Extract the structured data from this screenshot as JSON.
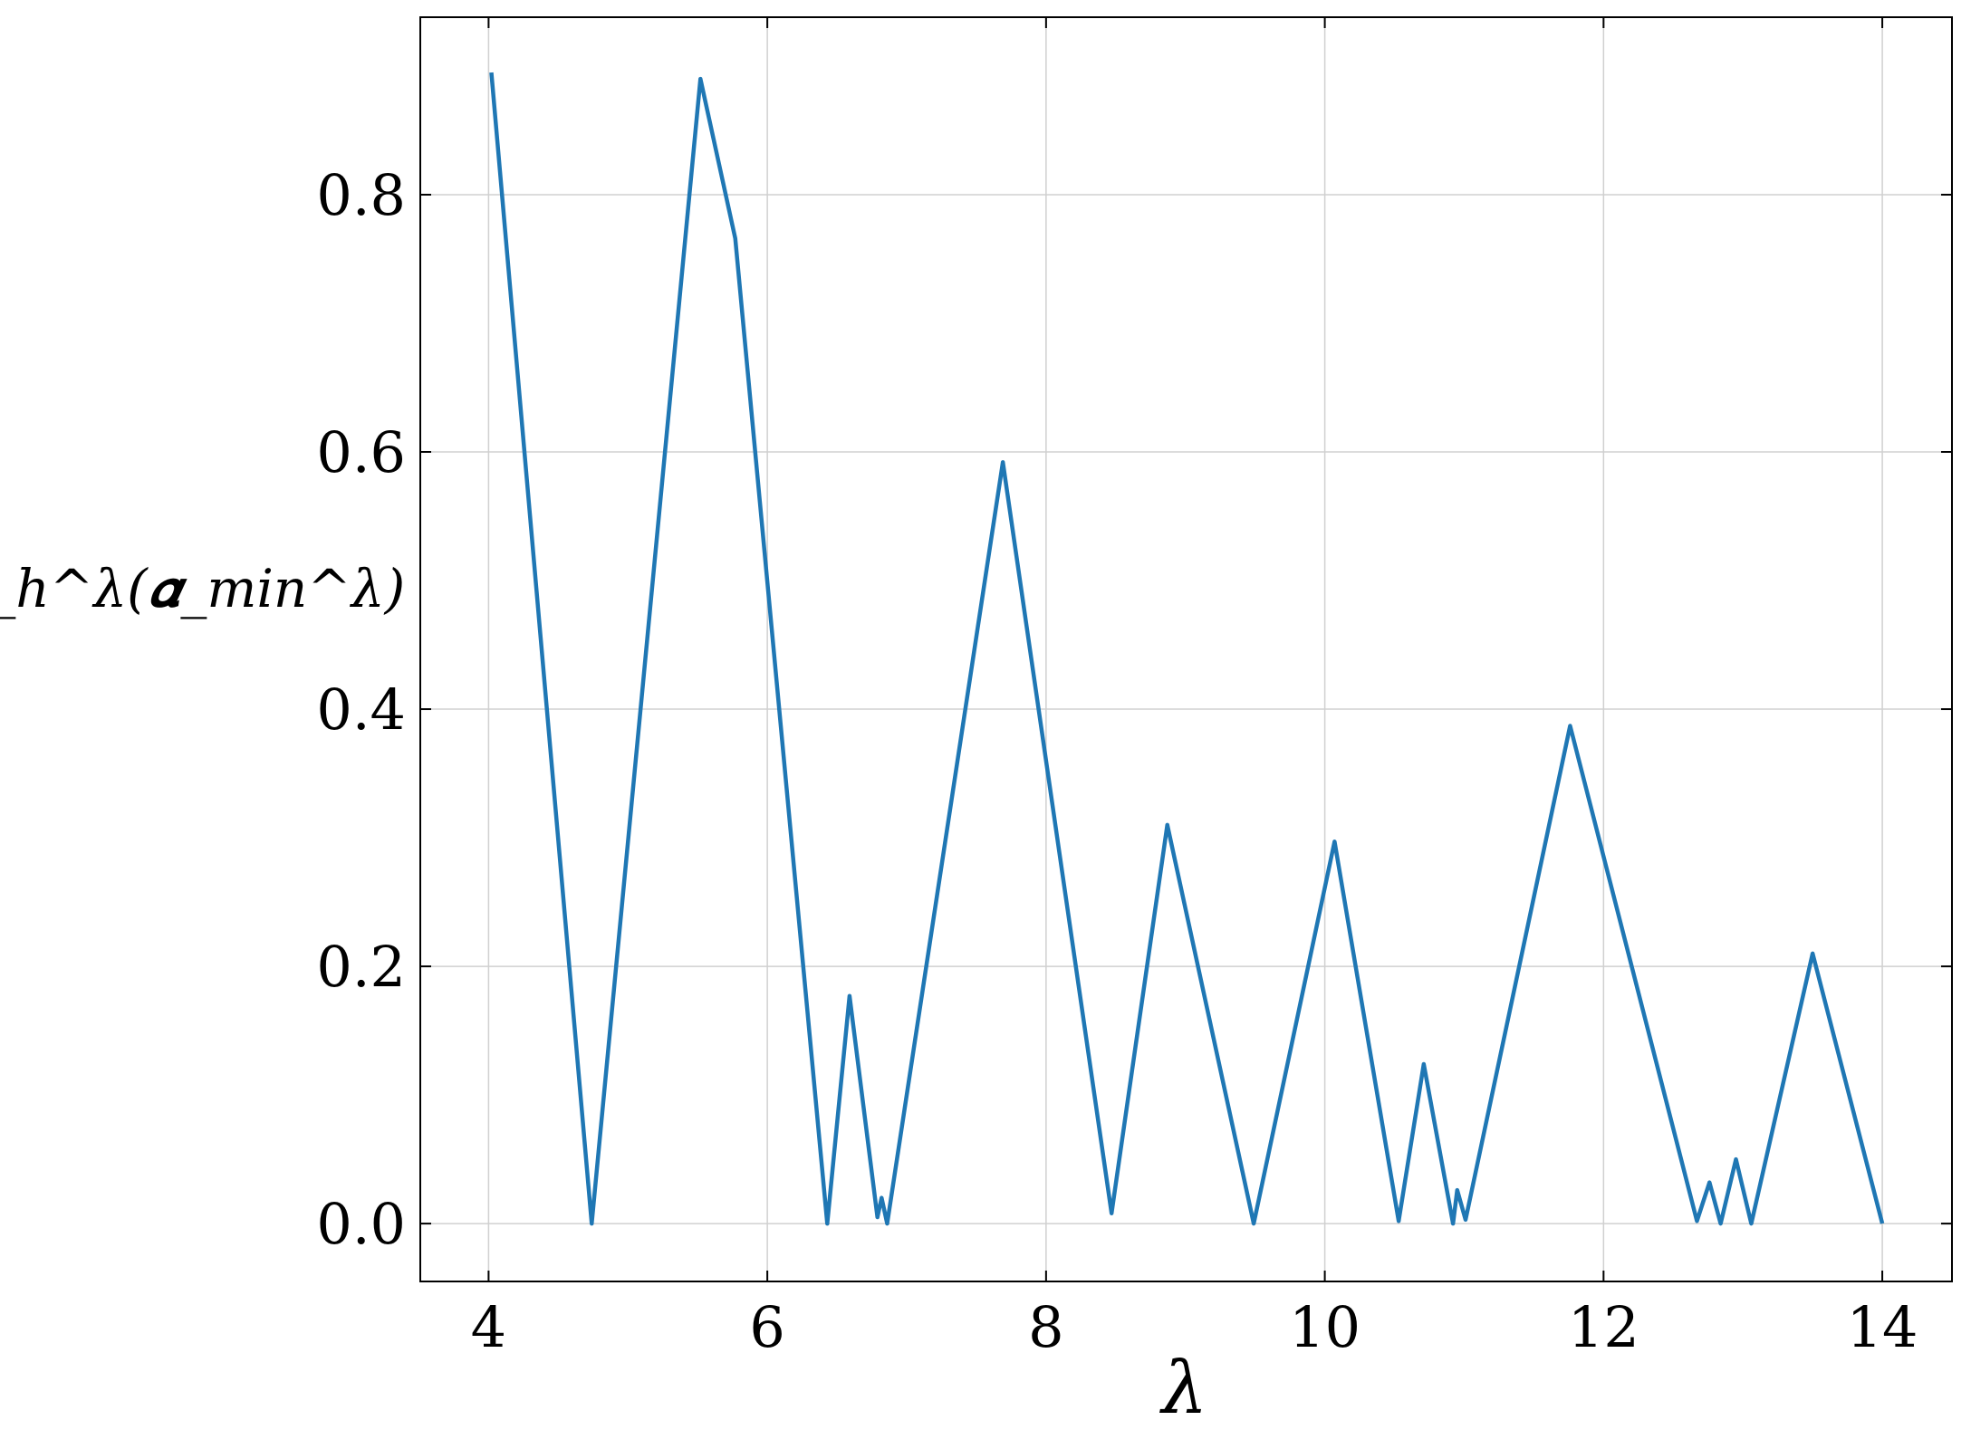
{
  "chart_data": {
    "type": "line",
    "x_label": "λ",
    "y_label": "ℱ_h^λ(𝜶_min^λ)",
    "series": [
      {
        "color": "#1f77b4",
        "x": [
          4.02,
          4.74,
          5.52,
          5.77,
          6.43,
          6.59,
          6.79,
          6.82,
          6.86,
          7.69,
          8.47,
          8.87,
          9.49,
          10.07,
          10.53,
          10.71,
          10.92,
          10.95,
          11.01,
          11.76,
          12.67,
          12.76,
          12.84,
          12.95,
          13.06,
          13.5,
          14.0
        ],
        "values": [
          0.895,
          0,
          0.89,
          0.766,
          0,
          0.177,
          0.005,
          0.02,
          0,
          0.592,
          0.008,
          0.31,
          0,
          0.297,
          0.002,
          0.124,
          0,
          0.026,
          0.003,
          0.387,
          0.002,
          0.032,
          0,
          0.05,
          0,
          0.21,
          0
        ]
      }
    ],
    "xlim": [
      3.51,
      14.5
    ],
    "ylim": [
      -0.045,
      0.938
    ],
    "xticks": [
      4,
      6,
      8,
      10,
      12,
      14
    ],
    "yticks": [
      {
        "value": 0,
        "label": "0.0"
      },
      0.2,
      0.4,
      0.6,
      0.8
    ],
    "grid": true
  }
}
